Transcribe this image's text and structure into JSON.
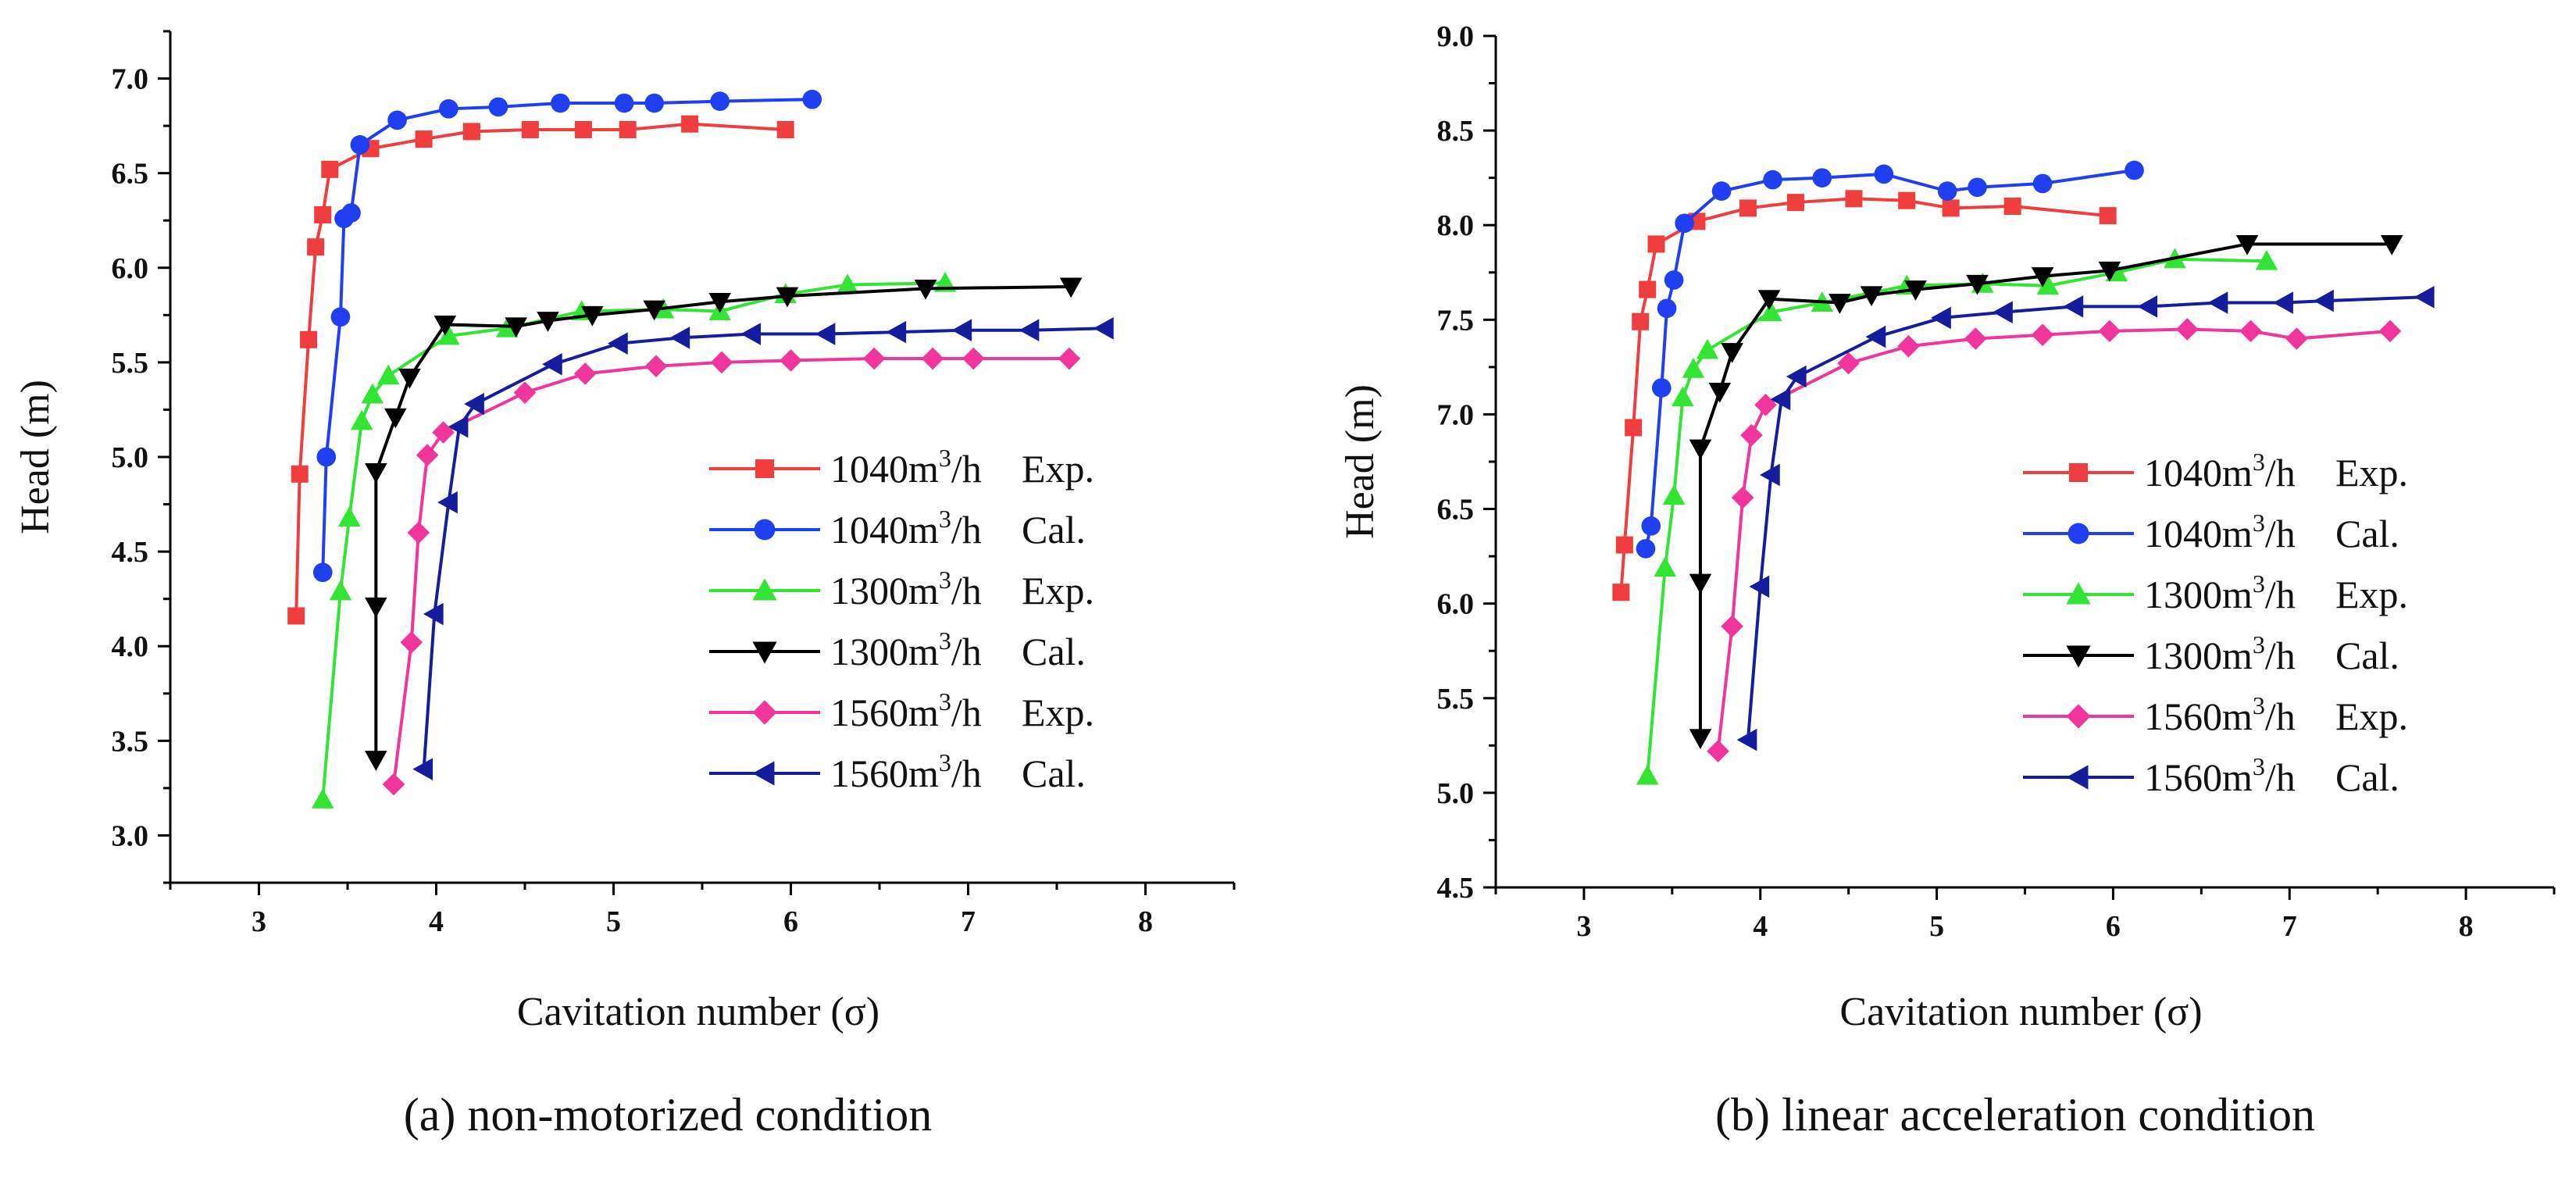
{
  "chart_data": [
    {
      "type": "line",
      "caption": "(a) non-motorized condition",
      "xlabel": "Cavitation number (σ)",
      "ylabel": "Head (m)",
      "xlim": [
        2.5,
        8.5
      ],
      "ylim": [
        2.75,
        7.25
      ],
      "xticks": [
        "3",
        "4",
        "5",
        "6",
        "7",
        "8"
      ],
      "yticks": [
        "3.0",
        "3.5",
        "4.0",
        "4.5",
        "5.0",
        "5.5",
        "6.0",
        "6.5",
        "7.0"
      ],
      "grid": false,
      "legend_position": "bottom-right",
      "series": [
        {
          "name": "1040m³/h Exp.",
          "flow": "1040m",
          "unit": "3",
          "suffix": "/h",
          "kind": "Exp.",
          "color": "#f03e3e",
          "marker": "square",
          "x": [
            3.21,
            3.23,
            3.28,
            3.32,
            3.36,
            3.4,
            3.63,
            3.93,
            4.2,
            4.53,
            4.83,
            5.08,
            5.43,
            5.97
          ],
          "y": [
            4.16,
            4.91,
            5.62,
            6.11,
            6.28,
            6.52,
            6.63,
            6.68,
            6.72,
            6.73,
            6.73,
            6.73,
            6.76,
            6.73
          ]
        },
        {
          "name": "1040m³/h Cal.",
          "flow": "1040m",
          "unit": "3",
          "suffix": "/h",
          "kind": "Cal.",
          "color": "#1f3ff0",
          "marker": "circle",
          "x": [
            3.36,
            3.38,
            3.46,
            3.48,
            3.52,
            3.57,
            3.78,
            4.07,
            4.35,
            4.7,
            5.06,
            5.23,
            5.6,
            6.12
          ],
          "y": [
            4.39,
            5.0,
            5.74,
            6.26,
            6.29,
            6.65,
            6.78,
            6.84,
            6.85,
            6.87,
            6.87,
            6.87,
            6.88,
            6.89
          ]
        },
        {
          "name": "1300m³/h Exp.",
          "flow": "1300m",
          "unit": "3",
          "suffix": "/h",
          "kind": "Exp.",
          "color": "#33e533",
          "marker": "triangle-up",
          "x": [
            3.36,
            3.46,
            3.51,
            3.58,
            3.64,
            3.73,
            4.07,
            4.4,
            4.82,
            5.28,
            5.6,
            5.97,
            6.32,
            6.87
          ],
          "y": [
            3.19,
            4.29,
            4.68,
            5.19,
            5.33,
            5.43,
            5.64,
            5.68,
            5.77,
            5.78,
            5.77,
            5.86,
            5.91,
            5.92
          ]
        },
        {
          "name": "1300m³/h Cal.",
          "flow": "1300m",
          "unit": "3",
          "suffix": "/h",
          "kind": "Cal.",
          "color": "#000000",
          "marker": "triangle-down",
          "x": [
            3.66,
            3.66,
            3.66,
            3.77,
            3.85,
            4.05,
            4.45,
            4.63,
            4.88,
            5.23,
            5.6,
            5.98,
            6.76,
            7.58
          ],
          "y": [
            3.4,
            4.21,
            4.92,
            5.21,
            5.42,
            5.7,
            5.69,
            5.72,
            5.75,
            5.78,
            5.82,
            5.85,
            5.89,
            5.9
          ]
        },
        {
          "name": "1560m³/h Exp.",
          "flow": "1560m",
          "unit": "3",
          "suffix": "/h",
          "kind": "Exp.",
          "color": "#f0359c",
          "marker": "diamond",
          "x": [
            3.76,
            3.86,
            3.9,
            3.95,
            4.04,
            4.5,
            4.84,
            5.24,
            5.61,
            6.0,
            6.47,
            6.8,
            7.03,
            7.57
          ],
          "y": [
            3.27,
            4.02,
            4.6,
            5.01,
            5.13,
            5.34,
            5.44,
            5.48,
            5.5,
            5.51,
            5.52,
            5.52,
            5.52,
            5.52
          ]
        },
        {
          "name": "1560m³/h Cal.",
          "flow": "1560m",
          "unit": "3",
          "suffix": "/h",
          "kind": "Cal.",
          "color": "#161d9c",
          "marker": "triangle-left",
          "x": [
            3.93,
            3.99,
            4.07,
            4.13,
            4.22,
            4.66,
            5.03,
            5.38,
            5.78,
            6.2,
            6.6,
            6.97,
            7.35,
            7.77
          ],
          "y": [
            3.35,
            4.17,
            4.76,
            5.16,
            5.28,
            5.49,
            5.6,
            5.63,
            5.65,
            5.65,
            5.66,
            5.67,
            5.67,
            5.68
          ]
        }
      ]
    },
    {
      "type": "line",
      "caption": "(b) linear acceleration condition",
      "xlabel": "Cavitation number (σ)",
      "ylabel": "Head (m)",
      "xlim": [
        2.5,
        8.5
      ],
      "ylim": [
        4.5,
        9.0
      ],
      "xticks": [
        "3",
        "4",
        "5",
        "6",
        "7",
        "8"
      ],
      "yticks": [
        "4.5",
        "5.0",
        "5.5",
        "6.0",
        "6.5",
        "7.0",
        "7.5",
        "8.0",
        "8.5",
        "9.0"
      ],
      "grid": false,
      "legend_position": "bottom-right",
      "series": [
        {
          "name": "1040m³/h Exp.",
          "flow": "1040m",
          "unit": "3",
          "suffix": "/h",
          "kind": "Exp.",
          "color": "#f03e3e",
          "marker": "square",
          "x": [
            3.21,
            3.23,
            3.28,
            3.32,
            3.36,
            3.41,
            3.64,
            3.93,
            4.2,
            4.53,
            4.83,
            5.08,
            5.43,
            5.97
          ],
          "y": [
            6.06,
            6.31,
            6.93,
            7.49,
            7.66,
            7.9,
            8.02,
            8.09,
            8.12,
            8.14,
            8.13,
            8.09,
            8.1,
            8.05
          ]
        },
        {
          "name": "1040m³/h Cal.",
          "flow": "1040m",
          "unit": "3",
          "suffix": "/h",
          "kind": "Cal.",
          "color": "#1f3ff0",
          "marker": "circle",
          "x": [
            3.35,
            3.38,
            3.44,
            3.47,
            3.51,
            3.57,
            3.78,
            4.07,
            4.35,
            4.7,
            5.06,
            5.23,
            5.6,
            6.12
          ],
          "y": [
            6.29,
            6.41,
            7.14,
            7.56,
            7.71,
            8.01,
            8.18,
            8.24,
            8.25,
            8.27,
            8.18,
            8.2,
            8.22,
            8.29
          ]
        },
        {
          "name": "1300m³/h Exp.",
          "flow": "1300m",
          "unit": "3",
          "suffix": "/h",
          "kind": "Exp.",
          "color": "#33e533",
          "marker": "triangle-up",
          "x": [
            3.36,
            3.46,
            3.51,
            3.56,
            3.62,
            3.7,
            4.06,
            4.35,
            4.83,
            5.26,
            5.63,
            6.02,
            6.35,
            6.87
          ],
          "y": [
            5.09,
            6.19,
            6.57,
            7.09,
            7.24,
            7.34,
            7.54,
            7.59,
            7.68,
            7.69,
            7.68,
            7.75,
            7.82,
            7.81
          ]
        },
        {
          "name": "1300m³/h Cal.",
          "flow": "1300m",
          "unit": "3",
          "suffix": "/h",
          "kind": "Cal.",
          "color": "#000000",
          "marker": "triangle-down",
          "x": [
            3.66,
            3.66,
            3.66,
            3.77,
            3.84,
            4.05,
            4.45,
            4.63,
            4.88,
            5.23,
            5.6,
            5.98,
            6.76,
            7.58
          ],
          "y": [
            5.29,
            6.11,
            6.82,
            7.12,
            7.33,
            7.61,
            7.59,
            7.63,
            7.66,
            7.69,
            7.73,
            7.76,
            7.9,
            7.9
          ]
        },
        {
          "name": "1560m³/h Exp.",
          "flow": "1560m",
          "unit": "3",
          "suffix": "/h",
          "kind": "Exp.",
          "color": "#f0359c",
          "marker": "diamond",
          "x": [
            3.76,
            3.84,
            3.9,
            3.95,
            4.03,
            4.5,
            4.84,
            5.22,
            5.6,
            5.98,
            6.42,
            6.78,
            7.04,
            7.57
          ],
          "y": [
            5.22,
            5.88,
            6.56,
            6.89,
            7.05,
            7.27,
            7.36,
            7.4,
            7.42,
            7.44,
            7.45,
            7.44,
            7.4,
            7.44
          ]
        },
        {
          "name": "1560m³/h Cal.",
          "flow": "1560m",
          "unit": "3",
          "suffix": "/h",
          "kind": "Cal.",
          "color": "#161d9c",
          "marker": "triangle-left",
          "x": [
            3.93,
            4.0,
            4.06,
            4.12,
            4.21,
            4.66,
            5.03,
            5.38,
            5.78,
            6.2,
            6.6,
            6.97,
            7.2,
            7.77
          ],
          "y": [
            5.28,
            6.09,
            6.68,
            7.08,
            7.2,
            7.41,
            7.51,
            7.54,
            7.57,
            7.57,
            7.59,
            7.59,
            7.6,
            7.62
          ]
        }
      ]
    }
  ]
}
